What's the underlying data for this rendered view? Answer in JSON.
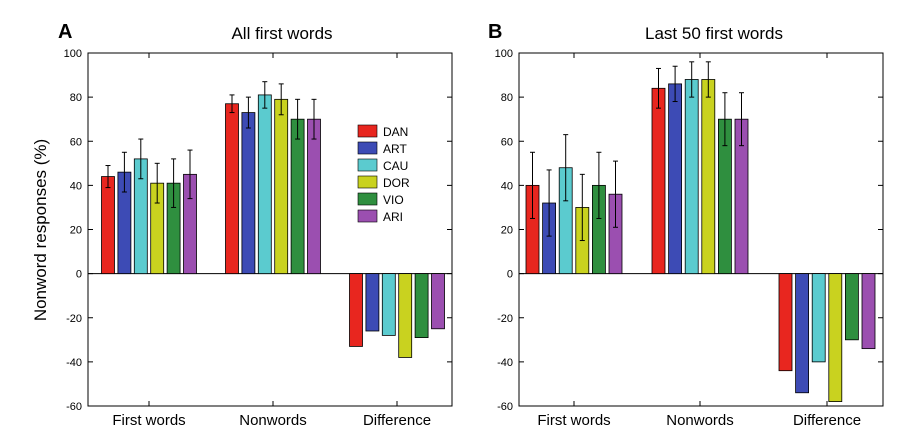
{
  "ylabel": "Nonword responses (%)",
  "legend": [
    {
      "name": "DAN",
      "color": "#e8261f"
    },
    {
      "name": "ART",
      "color": "#3d4bb5"
    },
    {
      "name": "CAU",
      "color": "#5bcbcf"
    },
    {
      "name": "DOR",
      "color": "#c9d21f"
    },
    {
      "name": "VIO",
      "color": "#2f8f3f"
    },
    {
      "name": "ARI",
      "color": "#9b4fb0"
    }
  ],
  "chart_data": [
    {
      "type": "bar",
      "panel_letter": "A",
      "title": "All first words",
      "categories": [
        "First words",
        "Nonwords",
        "Difference"
      ],
      "ylim": [
        -60,
        100
      ],
      "yticks": [
        -60,
        -40,
        -20,
        0,
        20,
        40,
        60,
        80,
        100
      ],
      "series": [
        {
          "name": "DAN",
          "values": [
            44,
            77,
            -33
          ],
          "errors": [
            5,
            4,
            null
          ]
        },
        {
          "name": "ART",
          "values": [
            46,
            73,
            -26
          ],
          "errors": [
            9,
            7,
            null
          ]
        },
        {
          "name": "CAU",
          "values": [
            52,
            81,
            -28
          ],
          "errors": [
            9,
            6,
            null
          ]
        },
        {
          "name": "DOR",
          "values": [
            41,
            79,
            -38
          ],
          "errors": [
            9,
            7,
            null
          ]
        },
        {
          "name": "VIO",
          "values": [
            41,
            70,
            -29
          ],
          "errors": [
            11,
            9,
            null
          ]
        },
        {
          "name": "ARI",
          "values": [
            45,
            70,
            -25
          ],
          "errors": [
            11,
            9,
            null
          ]
        }
      ]
    },
    {
      "type": "bar",
      "panel_letter": "B",
      "title": "Last 50 first words",
      "categories": [
        "First words",
        "Nonwords",
        "Difference"
      ],
      "ylim": [
        -60,
        100
      ],
      "yticks": [
        -60,
        -40,
        -20,
        0,
        20,
        40,
        60,
        80,
        100
      ],
      "series": [
        {
          "name": "DAN",
          "values": [
            40,
            84,
            -44
          ],
          "errors": [
            15,
            9,
            null
          ]
        },
        {
          "name": "ART",
          "values": [
            32,
            86,
            -54
          ],
          "errors": [
            15,
            8,
            null
          ]
        },
        {
          "name": "CAU",
          "values": [
            48,
            88,
            -40
          ],
          "errors": [
            15,
            8,
            null
          ]
        },
        {
          "name": "DOR",
          "values": [
            30,
            88,
            -58
          ],
          "errors": [
            15,
            8,
            null
          ]
        },
        {
          "name": "VIO",
          "values": [
            40,
            70,
            -30
          ],
          "errors": [
            15,
            12,
            null
          ]
        },
        {
          "name": "ARI",
          "values": [
            36,
            70,
            -34
          ],
          "errors": [
            15,
            12,
            null
          ]
        }
      ]
    }
  ]
}
